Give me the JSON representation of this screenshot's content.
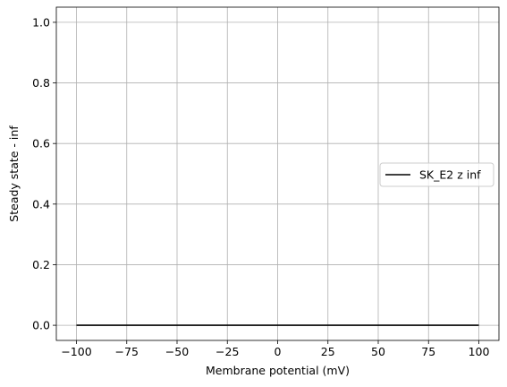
{
  "chart_data": {
    "type": "line",
    "title": "",
    "xlabel": "Membrane potential (mV)",
    "ylabel": "Steady state - inf",
    "xlim": [
      -110,
      110
    ],
    "ylim": [
      -0.05,
      1.05
    ],
    "xticks": [
      -100,
      -75,
      -50,
      -25,
      0,
      25,
      50,
      75,
      100
    ],
    "xtick_labels": [
      "−100",
      "−75",
      "−50",
      "−25",
      "0",
      "25",
      "50",
      "75",
      "100"
    ],
    "yticks": [
      0.0,
      0.2,
      0.4,
      0.6,
      0.8,
      1.0
    ],
    "ytick_labels": [
      "0.0",
      "0.2",
      "0.4",
      "0.6",
      "0.8",
      "1.0"
    ],
    "grid": true,
    "legend_position": "center-right",
    "series": [
      {
        "name": "SK_E2 z inf",
        "color": "#000000",
        "x": [
          -100,
          -75,
          -50,
          -25,
          0,
          25,
          50,
          75,
          100
        ],
        "y": [
          0,
          0,
          0,
          0,
          0,
          0,
          0,
          0,
          0
        ]
      }
    ]
  },
  "colors": {
    "grid": "#b0b0b0",
    "axis": "#000000",
    "background": "#ffffff"
  }
}
